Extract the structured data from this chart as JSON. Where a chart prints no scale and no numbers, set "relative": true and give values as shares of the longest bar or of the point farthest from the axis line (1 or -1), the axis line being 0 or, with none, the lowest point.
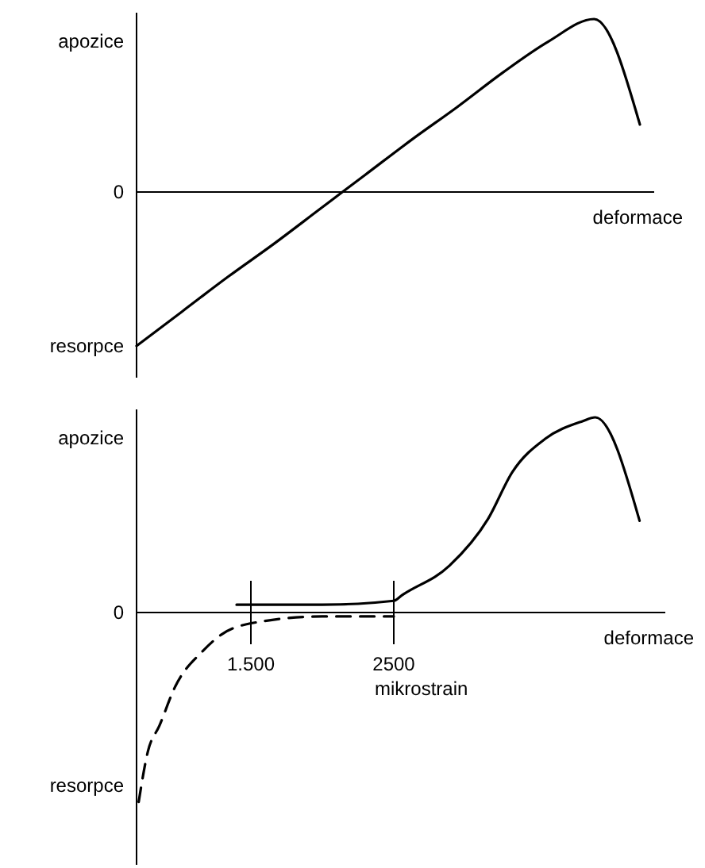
{
  "chart_data": [
    {
      "type": "line",
      "relative": true,
      "categories": [
        null,
        null,
        null,
        null,
        null,
        null,
        null,
        null,
        null,
        null,
        null,
        null
      ],
      "xlabel": "deformace",
      "tick_labels": false,
      "series": [
        {
          "color": "#000000",
          "values": [
            -0.89,
            -0.69,
            -0.49,
            -0.3,
            -0.1,
            0.1,
            0.3,
            0.49,
            0.69,
            0.87,
            1,
            0.39
          ]
        }
      ],
      "annotations": [
        "apozice",
        "0",
        "resorpce"
      ]
    },
    {
      "type": "line",
      "relative": true,
      "xlim": [
        700,
        4400
      ],
      "xticks": [
        {
          "value": 1500,
          "label": "1.500"
        },
        2500
      ],
      "ref_lines": [
        {
          "axis": "x",
          "value": 1500
        },
        {
          "axis": "x",
          "value": 2500
        }
      ],
      "xlabel": "deformace",
      "tick_labels": "x",
      "series": [
        {
          "color": "#000000",
          "line_style": "dashed",
          "x": [
            715,
            780,
            860,
            970,
            1160,
            1300,
            1470,
            2000,
            2500
          ],
          "values": [
            -0.97,
            -0.71,
            -0.58,
            -0.38,
            -0.2,
            -0.11,
            -0.06,
            -0.02,
            -0.02
          ]
        },
        {
          "color": "#000000",
          "line_style": "solid",
          "x": [
            1400,
            2000,
            2500,
            2560,
            2890,
            3160,
            3330,
            3560,
            3820,
            3910,
            4220
          ],
          "values": [
            0.04,
            0.04,
            0.06,
            0.09,
            0.24,
            0.48,
            0.72,
            0.89,
            0.98,
            1,
            0.47
          ]
        }
      ],
      "annotations": [
        "apozice",
        "0",
        "resorpce",
        "mikrostrain"
      ]
    }
  ]
}
